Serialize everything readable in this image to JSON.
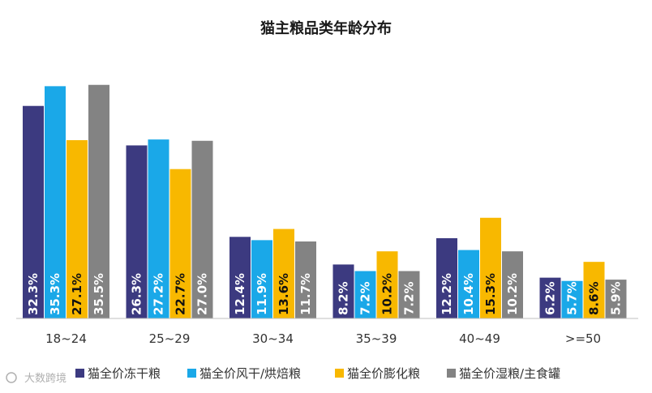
{
  "chart_data": {
    "type": "bar",
    "title": "猫主粮品类年龄分布",
    "categories": [
      "18~24",
      "25~29",
      "30~34",
      "35~39",
      "40~49",
      ">=50"
    ],
    "series": [
      {
        "name": "猫全价冻干粮",
        "color": "#3c3a80",
        "values": [
          32.3,
          26.3,
          12.4,
          8.2,
          12.2,
          6.2
        ],
        "labels": [
          "32.3%",
          "26.3%",
          "12.4%",
          "8.2%",
          "12.2%",
          "6.2%"
        ]
      },
      {
        "name": "猫全价风干/烘焙粮",
        "color": "#1aa8e8",
        "values": [
          35.3,
          27.2,
          11.9,
          7.2,
          10.4,
          5.7
        ],
        "labels": [
          "35.3%",
          "27.2%",
          "11.9%",
          "7.2%",
          "10.4%",
          "5.7%"
        ]
      },
      {
        "name": "猫全价膨化粮",
        "color": "#f8b800",
        "values": [
          27.1,
          22.7,
          13.6,
          10.2,
          15.3,
          8.6
        ],
        "labels": [
          "27.1%",
          "22.7%",
          "13.6%",
          "10.2%",
          "15.3%",
          "8.6%"
        ]
      },
      {
        "name": "猫全价湿粮/主食罐",
        "color": "#838383",
        "values": [
          35.5,
          27.0,
          11.7,
          7.2,
          10.2,
          5.9
        ],
        "labels": [
          "35.5%",
          "27.0%",
          "11.7%",
          "7.2%",
          "10.2%",
          "5.9%"
        ]
      }
    ],
    "legend_position": "bottom",
    "xlabel": "",
    "ylabel": "",
    "ylim": [
      0,
      36
    ],
    "grid": false,
    "label_colors": [
      "#ffffff",
      "#ffffff",
      "#111111",
      "#ffffff"
    ]
  },
  "watermark": "大数跨境"
}
